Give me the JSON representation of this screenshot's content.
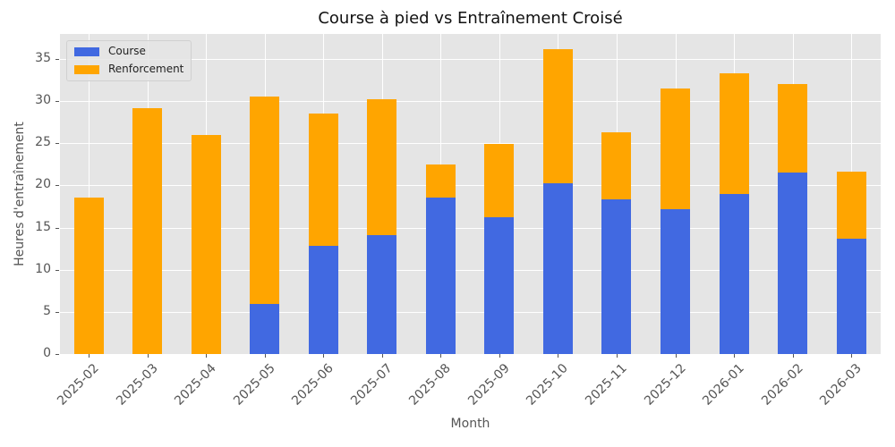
{
  "chart_data": {
    "type": "bar",
    "stacked": true,
    "title": "Course à pied vs Entraînement Croisé",
    "xlabel": "Month",
    "ylabel": "Heures d'entraînement",
    "ylim": [
      0,
      38
    ],
    "yticks": [
      0,
      5,
      10,
      15,
      20,
      25,
      30,
      35
    ],
    "grid": true,
    "legend_position": "upper left",
    "categories": [
      "2025-02",
      "2025-03",
      "2025-04",
      "2025-05",
      "2025-06",
      "2025-07",
      "2025-08",
      "2025-09",
      "2025-10",
      "2025-11",
      "2025-12",
      "2026-01",
      "2026-02",
      "2026-03"
    ],
    "series": [
      {
        "name": "Course",
        "color": "#4169e1",
        "values": [
          0,
          0,
          0,
          5.9,
          12.8,
          14.1,
          18.6,
          16.2,
          20.3,
          18.3,
          17.2,
          19.0,
          21.5,
          13.7
        ]
      },
      {
        "name": "Renforcement",
        "color": "#ffa500",
        "values": [
          18.6,
          29.2,
          26.0,
          24.6,
          15.7,
          16.1,
          3.9,
          8.7,
          15.9,
          8.0,
          14.3,
          14.3,
          10.5,
          7.9
        ]
      }
    ],
    "totals": [
      18.6,
      29.2,
      26.0,
      30.5,
      28.5,
      30.2,
      22.5,
      24.9,
      36.2,
      26.3,
      31.5,
      33.3,
      32.0,
      21.6
    ]
  }
}
